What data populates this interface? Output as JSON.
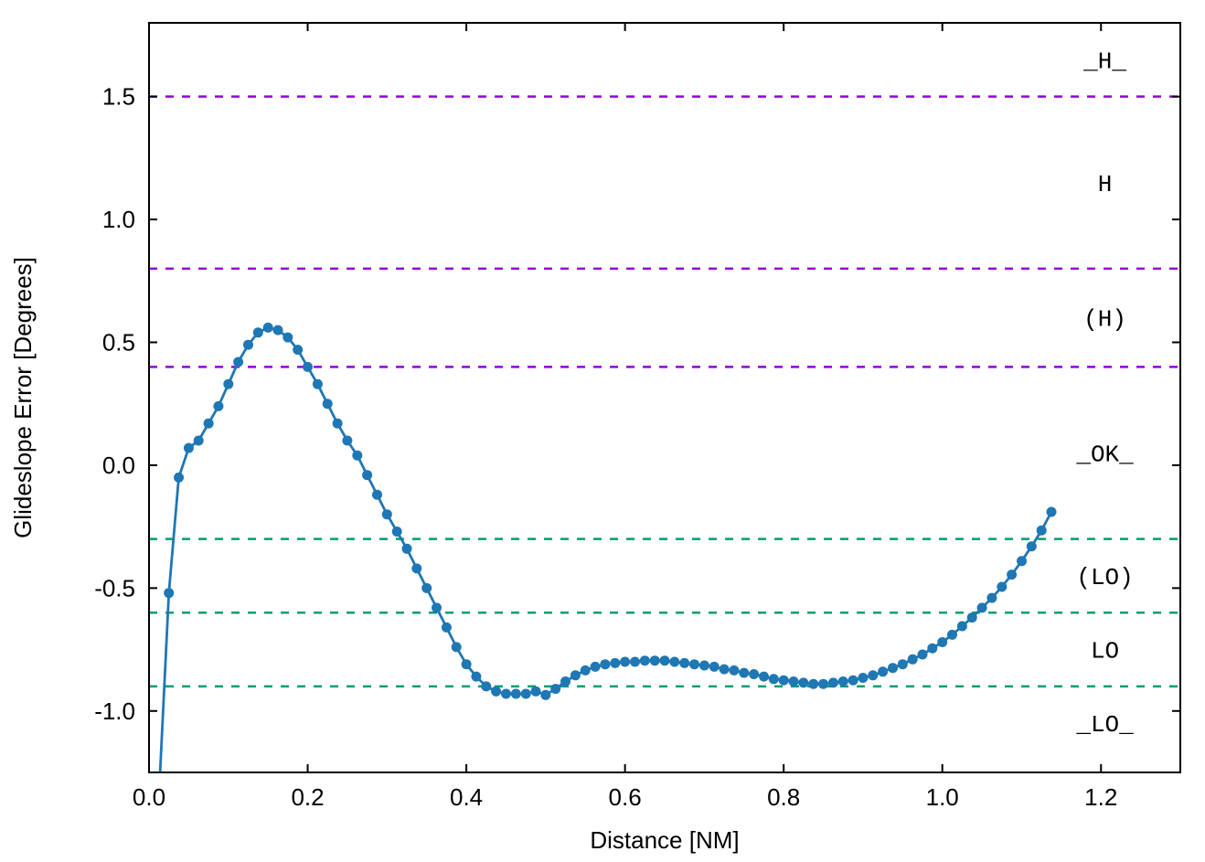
{
  "chart_data": {
    "type": "line",
    "title": "",
    "xlabel": "Distance [NM]",
    "ylabel": "Glideslope Error [Degrees]",
    "xlim": [
      0,
      1.3
    ],
    "ylim": [
      -1.25,
      1.8
    ],
    "grid": false,
    "legend": "none",
    "xticks": [
      0.0,
      0.2,
      0.4,
      0.6,
      0.8,
      1.0,
      1.2
    ],
    "xtick_labels": [
      "0.0",
      "0.2",
      "0.4",
      "0.6",
      "0.8",
      "1.0",
      "1.2"
    ],
    "yticks": [
      -1.0,
      -0.5,
      0.0,
      0.5,
      1.0,
      1.5
    ],
    "ytick_labels": [
      "-1.0",
      "-0.5",
      "0.0",
      "0.5",
      "1.0",
      "1.5"
    ],
    "colors": {
      "series_blue": "#1f77b4",
      "high_limit_purple": "#9400d3",
      "low_limit_teal": "#009e73",
      "axis_black": "#000000",
      "background": "#ffffff"
    },
    "threshold_lines": [
      {
        "name": "upper-limit-outer",
        "y": 1.5,
        "color": "#9400d3",
        "style": "dashed"
      },
      {
        "name": "upper-limit-mid",
        "y": 0.8,
        "color": "#9400d3",
        "style": "dashed"
      },
      {
        "name": "upper-limit-inner",
        "y": 0.4,
        "color": "#9400d3",
        "style": "dashed"
      },
      {
        "name": "lower-limit-inner",
        "y": -0.3,
        "color": "#009e73",
        "style": "dashed"
      },
      {
        "name": "lower-limit-mid",
        "y": -0.6,
        "color": "#009e73",
        "style": "dashed"
      },
      {
        "name": "lower-limit-outer",
        "y": -0.9,
        "color": "#009e73",
        "style": "dashed"
      }
    ],
    "zone_label_x": 1.205,
    "zone_labels": [
      {
        "text": "_H_",
        "y": 1.65
      },
      {
        "text": "H",
        "y": 1.15
      },
      {
        "text": "(H)",
        "y": 0.6
      },
      {
        "text": "_OK_",
        "y": 0.05
      },
      {
        "text": "(LO)",
        "y": -0.45
      },
      {
        "text": "LO",
        "y": -0.75
      },
      {
        "text": "_LO_",
        "y": -1.05
      }
    ],
    "series": [
      {
        "name": "glideslope-error",
        "color": "#1f77b4",
        "marker": "circle",
        "points": [
          [
            0.0125,
            -1.35
          ],
          [
            0.025,
            -0.52
          ],
          [
            0.0375,
            -0.05
          ],
          [
            0.05,
            0.07
          ],
          [
            0.0625,
            0.1
          ],
          [
            0.075,
            0.17
          ],
          [
            0.0875,
            0.24
          ],
          [
            0.1,
            0.33
          ],
          [
            0.1125,
            0.42
          ],
          [
            0.125,
            0.49
          ],
          [
            0.1375,
            0.54
          ],
          [
            0.15,
            0.56
          ],
          [
            0.1625,
            0.55
          ],
          [
            0.175,
            0.52
          ],
          [
            0.1875,
            0.47
          ],
          [
            0.2,
            0.4
          ],
          [
            0.2125,
            0.33
          ],
          [
            0.225,
            0.25
          ],
          [
            0.2375,
            0.17
          ],
          [
            0.25,
            0.1
          ],
          [
            0.2625,
            0.04
          ],
          [
            0.275,
            -0.04
          ],
          [
            0.2875,
            -0.12
          ],
          [
            0.3,
            -0.2
          ],
          [
            0.3125,
            -0.27
          ],
          [
            0.325,
            -0.34
          ],
          [
            0.3375,
            -0.42
          ],
          [
            0.35,
            -0.5
          ],
          [
            0.3625,
            -0.58
          ],
          [
            0.375,
            -0.66
          ],
          [
            0.3875,
            -0.74
          ],
          [
            0.4,
            -0.81
          ],
          [
            0.4125,
            -0.86
          ],
          [
            0.425,
            -0.9
          ],
          [
            0.4375,
            -0.92
          ],
          [
            0.45,
            -0.93
          ],
          [
            0.4625,
            -0.93
          ],
          [
            0.475,
            -0.93
          ],
          [
            0.4875,
            -0.92
          ],
          [
            0.5,
            -0.935
          ],
          [
            0.5125,
            -0.91
          ],
          [
            0.525,
            -0.88
          ],
          [
            0.5375,
            -0.855
          ],
          [
            0.55,
            -0.835
          ],
          [
            0.5625,
            -0.82
          ],
          [
            0.575,
            -0.81
          ],
          [
            0.5875,
            -0.805
          ],
          [
            0.6,
            -0.8
          ],
          [
            0.6125,
            -0.8
          ],
          [
            0.625,
            -0.795
          ],
          [
            0.6375,
            -0.795
          ],
          [
            0.65,
            -0.795
          ],
          [
            0.6625,
            -0.8
          ],
          [
            0.675,
            -0.805
          ],
          [
            0.6875,
            -0.81
          ],
          [
            0.7,
            -0.815
          ],
          [
            0.7125,
            -0.82
          ],
          [
            0.725,
            -0.83
          ],
          [
            0.7375,
            -0.835
          ],
          [
            0.75,
            -0.845
          ],
          [
            0.7625,
            -0.85
          ],
          [
            0.775,
            -0.86
          ],
          [
            0.7875,
            -0.87
          ],
          [
            0.8,
            -0.875
          ],
          [
            0.8125,
            -0.88
          ],
          [
            0.825,
            -0.885
          ],
          [
            0.8375,
            -0.89
          ],
          [
            0.85,
            -0.89
          ],
          [
            0.8625,
            -0.885
          ],
          [
            0.875,
            -0.88
          ],
          [
            0.8875,
            -0.875
          ],
          [
            0.9,
            -0.865
          ],
          [
            0.9125,
            -0.855
          ],
          [
            0.925,
            -0.84
          ],
          [
            0.9375,
            -0.825
          ],
          [
            0.95,
            -0.81
          ],
          [
            0.9625,
            -0.79
          ],
          [
            0.975,
            -0.77
          ],
          [
            0.9875,
            -0.745
          ],
          [
            1.0,
            -0.72
          ],
          [
            1.0125,
            -0.69
          ],
          [
            1.025,
            -0.655
          ],
          [
            1.0375,
            -0.62
          ],
          [
            1.05,
            -0.58
          ],
          [
            1.0625,
            -0.54
          ],
          [
            1.075,
            -0.495
          ],
          [
            1.0875,
            -0.445
          ],
          [
            1.1,
            -0.39
          ],
          [
            1.1125,
            -0.33
          ],
          [
            1.125,
            -0.265
          ],
          [
            1.1375,
            -0.19
          ]
        ]
      }
    ]
  }
}
